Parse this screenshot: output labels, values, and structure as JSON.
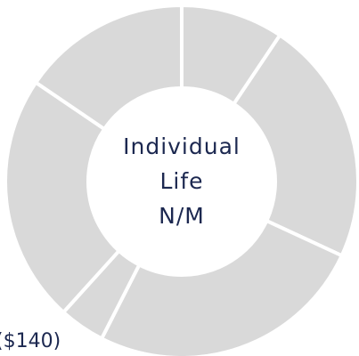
{
  "chart_data": {
    "type": "donut",
    "values": [
      9.4,
      22.5,
      25.6,
      4.2,
      22.8,
      15.5
    ],
    "color": "#d9d9d9",
    "center_label": [
      "Individual",
      "Life",
      "N/M"
    ],
    "annotation": "($140)"
  }
}
